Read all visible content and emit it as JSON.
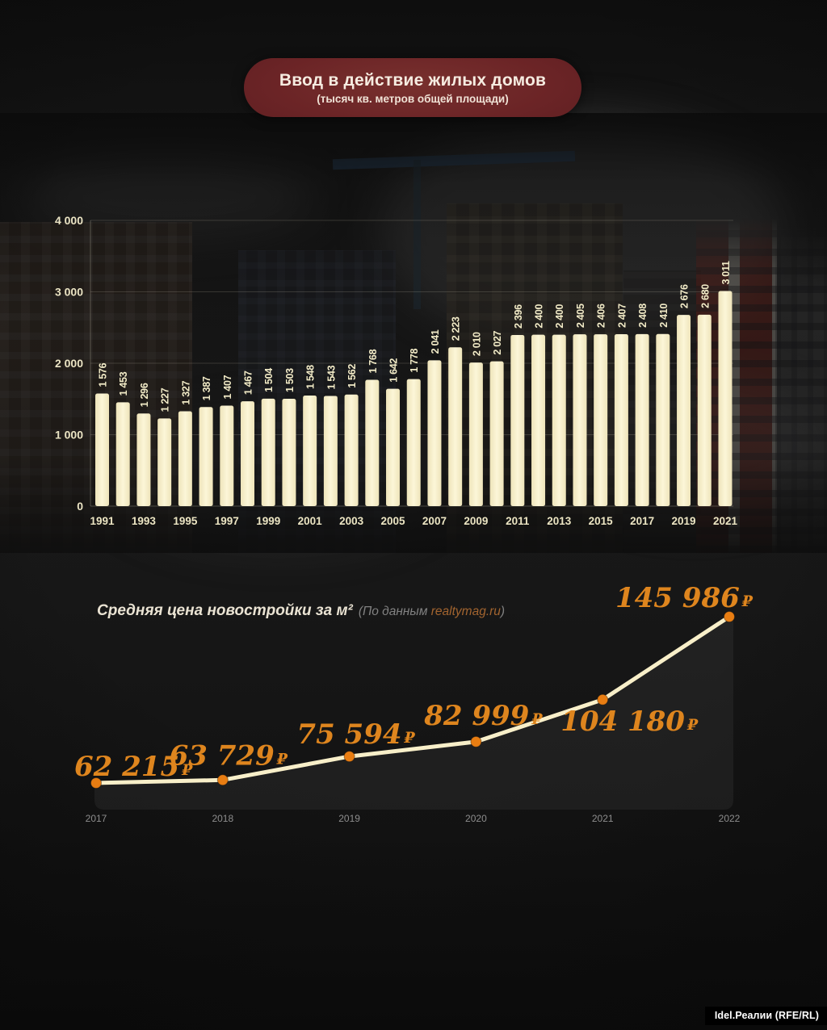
{
  "header": {
    "title": "Ввод в действие жилых домов",
    "subtitle": "(тысяч кв. метров общей площади)"
  },
  "colors": {
    "background": "#161616",
    "bar_fill": "#f8f1cf",
    "bar_label": "#f2ebc7",
    "axis_text": "#ebe4c4",
    "pill_background": "#6b2426",
    "pill_text": "#f6ece1",
    "line_stroke": "#f8efc9",
    "point_fill": "#e87d12",
    "price_label": "#de851e",
    "muted_text": "#8d8d8d",
    "source_link": "#a2642f",
    "watermark_bg": "#000000",
    "watermark_text": "#ffffff"
  },
  "chart_data": [
    {
      "id": "housing_commissioned",
      "type": "bar",
      "title": "Ввод в действие жилых домов",
      "subtitle": "(тысяч кв. метров общей площади)",
      "x": [
        1991,
        1992,
        1993,
        1994,
        1995,
        1996,
        1997,
        1998,
        1999,
        2000,
        2001,
        2002,
        2003,
        2004,
        2005,
        2006,
        2007,
        2008,
        2009,
        2010,
        2011,
        2012,
        2013,
        2014,
        2015,
        2016,
        2017,
        2018,
        2019,
        2020,
        2021
      ],
      "values": [
        1576,
        1453,
        1296,
        1227,
        1327,
        1387,
        1407,
        1467,
        1504,
        1503,
        1548,
        1543,
        1562,
        1768,
        1642,
        1778,
        2041,
        2223,
        2010,
        2027,
        2396,
        2400,
        2400,
        2405,
        2406,
        2407,
        2408,
        2410,
        2676,
        2680,
        3011
      ],
      "bar_labels": [
        "1 576",
        "1 453",
        "1 296",
        "1 227",
        "1 327",
        "1 387",
        "1 407",
        "1 467",
        "1 504",
        "1 503",
        "1 548",
        "1 543",
        "1 562",
        "1 768",
        "1 642",
        "1 778",
        "2 041",
        "2 223",
        "2 010",
        "2 027",
        "2 396",
        "2 400",
        "2 400",
        "2 405",
        "2 406",
        "2 407",
        "2 408",
        "2 410",
        "2 676",
        "2 680",
        "3 011"
      ],
      "ylim": [
        0,
        4000
      ],
      "y_ticks": [
        0,
        1000,
        2000,
        3000,
        4000
      ],
      "y_tick_labels": [
        "0",
        "1 000",
        "2 000",
        "3 000",
        "4 000"
      ],
      "x_tick_years": [
        1991,
        1993,
        1995,
        1997,
        1999,
        2001,
        2003,
        2005,
        2007,
        2009,
        2011,
        2013,
        2015,
        2017,
        2019,
        2021
      ],
      "grid": true,
      "legend": "none"
    },
    {
      "id": "new_build_price",
      "type": "line",
      "title": "Средняя цена новостройки за м²",
      "source_prefix": "(По данным ",
      "source_link": "realtymag.ru",
      "source_suffix": ")",
      "x": [
        2017,
        2018,
        2019,
        2020,
        2021,
        2022
      ],
      "values": [
        62215,
        63729,
        75594,
        82999,
        104180,
        145986
      ],
      "value_labels": [
        "62 215",
        "63 729",
        "75 594",
        "82 999",
        "104 180",
        "145 986"
      ],
      "currency_symbol": "₽",
      "grid": false,
      "legend": "none"
    }
  ],
  "watermark": {
    "label": "Idel.Реалии (RFE/RL)"
  }
}
